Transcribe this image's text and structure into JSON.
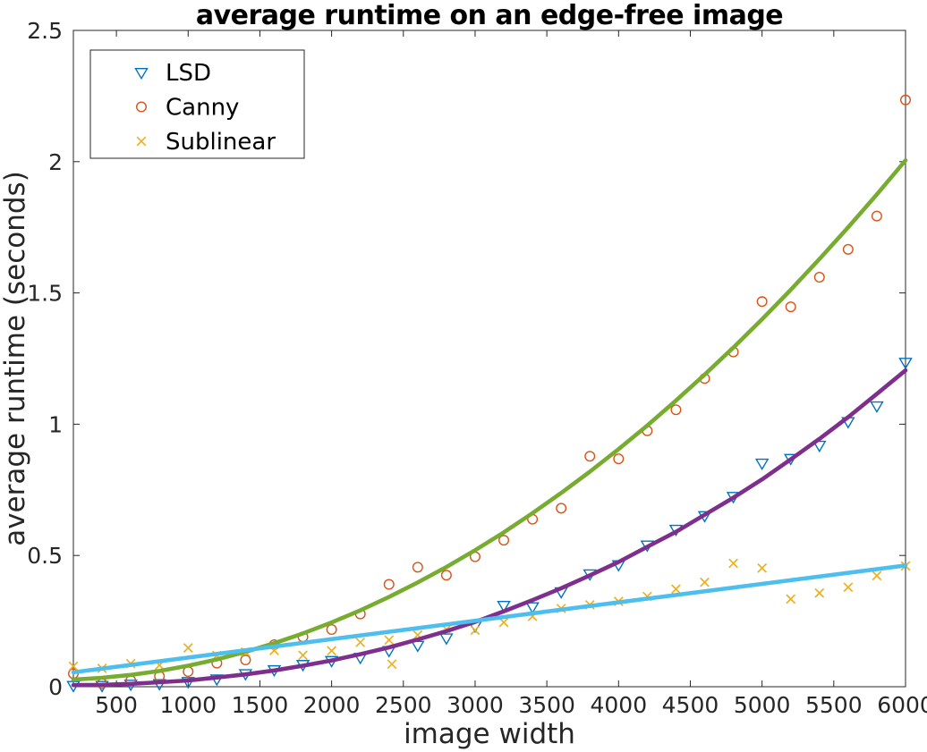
{
  "title": "average runtime on an edge-free image",
  "xlabel": "image width",
  "ylabel": "average runtime (seconds)",
  "axes": {
    "xlim": [
      200,
      6000
    ],
    "ylim": [
      0,
      2.5
    ],
    "xticks": [
      500,
      1000,
      1500,
      2000,
      2500,
      3000,
      3500,
      4000,
      4500,
      5000,
      5500,
      6000
    ],
    "xtick_labels": [
      "500",
      "1000",
      "1500",
      "2000",
      "2500",
      "3000",
      "3500",
      "4000",
      "4500",
      "5000",
      "5500",
      "6000"
    ],
    "yticks": [
      0,
      0.5,
      1,
      1.5,
      2,
      2.5
    ],
    "ytick_labels": [
      "0",
      "0.5",
      "1",
      "1.5",
      "2",
      "2.5"
    ],
    "grid": false,
    "box": true,
    "tick_dir": "in",
    "axis_color": "#262626"
  },
  "legend": {
    "position": "top-left",
    "border_color": "#262626",
    "background": "#ffffff",
    "items": [
      {
        "label": "LSD",
        "marker": "triangle-down",
        "color": "#0072BD"
      },
      {
        "label": "Canny",
        "marker": "circle",
        "color": "#D95319"
      },
      {
        "label": "Sublinear",
        "marker": "x",
        "color": "#EDB120"
      }
    ]
  },
  "chart_data": {
    "type": "scatter",
    "x": [
      200,
      400,
      600,
      800,
      1000,
      1200,
      1400,
      1600,
      1800,
      2000,
      2200,
      2400,
      2600,
      2800,
      3000,
      3200,
      3400,
      3600,
      3800,
      4000,
      4200,
      4400,
      4600,
      4800,
      5000,
      5200,
      5400,
      5600,
      5800,
      6000
    ],
    "series": [
      {
        "name": "LSD",
        "marker": "triangle-down",
        "color": "#0072BD",
        "values": [
          0.005,
          0.005,
          0.01,
          0.012,
          0.02,
          0.03,
          0.05,
          0.065,
          0.085,
          0.1,
          0.112,
          0.138,
          0.158,
          0.186,
          0.232,
          0.31,
          0.305,
          0.362,
          0.43,
          0.465,
          0.54,
          0.6,
          0.652,
          0.725,
          0.852,
          0.87,
          0.92,
          1.01,
          1.07,
          1.236
        ]
      },
      {
        "name": "Canny",
        "marker": "circle",
        "color": "#D95319",
        "values": [
          0.05,
          0.012,
          0.024,
          0.04,
          0.058,
          0.09,
          0.102,
          0.16,
          0.19,
          0.218,
          0.277,
          0.39,
          0.455,
          0.425,
          0.495,
          0.558,
          0.638,
          0.68,
          0.878,
          0.868,
          0.975,
          1.055,
          1.174,
          1.275,
          1.467,
          1.447,
          1.56,
          1.666,
          1.793,
          2.235
        ]
      },
      {
        "name": "Sublinear",
        "marker": "x",
        "color": "#EDB120",
        "values": [
          0.078,
          0.07,
          0.088,
          0.082,
          0.148,
          0.119,
          0.132,
          0.138,
          0.12,
          0.137,
          0.169,
          0.178,
          0.197,
          0.218,
          0.215,
          0.245,
          0.268,
          0.298,
          0.312,
          0.325,
          0.344,
          0.372,
          0.398,
          0.47,
          0.452,
          0.334,
          0.357,
          0.379,
          0.423,
          0.46
        ],
        "extra_points": [
          {
            "x": 2420,
            "y": 0.086
          }
        ]
      }
    ],
    "fit_lines": [
      {
        "name": "LSD fit",
        "color": "#7E2F8E",
        "line_width": 4.6,
        "x": [
          200,
          400,
          600,
          800,
          1000,
          1200,
          1400,
          1600,
          1800,
          2000,
          2200,
          2400,
          2600,
          2800,
          3000,
          3200,
          3400,
          3600,
          3800,
          4000,
          4200,
          4400,
          4600,
          4800,
          5000,
          5200,
          5400,
          5600,
          5800,
          6000
        ],
        "y": [
          0.006,
          0.007,
          0.011,
          0.017,
          0.024,
          0.035,
          0.047,
          0.062,
          0.08,
          0.1,
          0.124,
          0.15,
          0.18,
          0.212,
          0.247,
          0.287,
          0.33,
          0.375,
          0.424,
          0.475,
          0.533,
          0.59,
          0.655,
          0.72,
          0.79,
          0.866,
          0.944,
          1.027,
          1.115,
          1.205
        ]
      },
      {
        "name": "Canny fit",
        "color": "#77AC30",
        "line_width": 4.6,
        "x": [
          200,
          400,
          600,
          800,
          1000,
          1200,
          1400,
          1600,
          1800,
          2000,
          2200,
          2400,
          2600,
          2800,
          3000,
          3200,
          3400,
          3600,
          3800,
          4000,
          4200,
          4400,
          4600,
          4800,
          5000,
          5200,
          5400,
          5600,
          5800,
          6000
        ],
        "y": [
          0.027,
          0.034,
          0.045,
          0.06,
          0.08,
          0.104,
          0.133,
          0.166,
          0.203,
          0.245,
          0.291,
          0.342,
          0.397,
          0.456,
          0.52,
          0.588,
          0.661,
          0.738,
          0.819,
          0.905,
          0.995,
          1.09,
          1.189,
          1.292,
          1.4,
          1.512,
          1.629,
          1.75,
          1.875,
          2.005
        ]
      },
      {
        "name": "Sublinear fit",
        "color": "#4DBEEE",
        "line_width": 4.6,
        "x": [
          200,
          6000
        ],
        "y": [
          0.055,
          0.462
        ]
      }
    ]
  }
}
